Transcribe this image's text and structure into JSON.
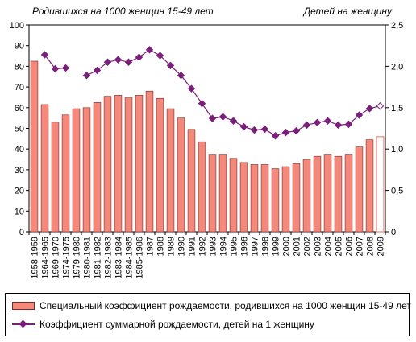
{
  "chart_data": {
    "type": "bar",
    "left_axis_title": "Родившихся на 1000 женщин 15-49 лет",
    "right_axis_title": "Детей на женщину",
    "categories": [
      "1958-1959",
      "1964-1965",
      "1969-1970",
      "1974-1975",
      "1979-1980",
      "1980-1981",
      "1981-1982",
      "1982-1983",
      "1983-1984",
      "1984-1985",
      "1985-1986",
      "1987",
      "1988",
      "1989",
      "1990",
      "1991",
      "1992",
      "1993",
      "1994",
      "1995",
      "1996",
      "1997",
      "1998",
      "1999",
      "2000",
      "2001",
      "2002",
      "2003",
      "2004",
      "2005",
      "2006",
      "2007",
      "2008",
      "2009"
    ],
    "y_left": {
      "min": 0,
      "max": 100,
      "step": 10,
      "ticks": [
        "0",
        "10",
        "20",
        "30",
        "40",
        "50",
        "60",
        "70",
        "80",
        "90",
        "100"
      ]
    },
    "y_right": {
      "min": 0,
      "max": 2.5,
      "step": 0.5,
      "ticks": [
        "0",
        "0,5",
        "1,0",
        "1,5",
        "2,0",
        "2,5"
      ]
    },
    "gridlines": false,
    "series": [
      {
        "name": "Специальный коэффициент рождаемости, родившихся на 1000 женщин 15-49 лет",
        "kind": "bar",
        "axis": "left",
        "color": "#f4887a",
        "edge_color": "#7a2a22",
        "last_point_style": "hollow",
        "values": [
          82.5,
          61.5,
          53,
          56.5,
          59.5,
          60,
          62.5,
          65.5,
          66,
          65,
          66,
          68,
          64.5,
          59.5,
          55,
          49.5,
          43.5,
          37.5,
          37.5,
          35.5,
          33.5,
          32.5,
          32.5,
          30.5,
          31.5,
          33,
          35,
          36.5,
          37.5,
          36.5,
          37.5,
          41,
          44.5,
          46
        ]
      },
      {
        "name": "Коэффициент суммарной рождаемости, детей на 1 женщину",
        "kind": "line",
        "axis": "right",
        "color": "#7a1f7a",
        "last_point_style": "hollow",
        "values": [
          null,
          2.14,
          1.97,
          1.98,
          null,
          1.89,
          1.95,
          2.05,
          2.08,
          2.05,
          2.11,
          2.2,
          2.13,
          2.01,
          1.89,
          1.73,
          1.55,
          1.37,
          1.39,
          1.34,
          1.27,
          1.23,
          1.24,
          1.16,
          1.2,
          1.22,
          1.29,
          1.32,
          1.34,
          1.29,
          1.3,
          1.41,
          1.49,
          1.52
        ]
      }
    ]
  }
}
